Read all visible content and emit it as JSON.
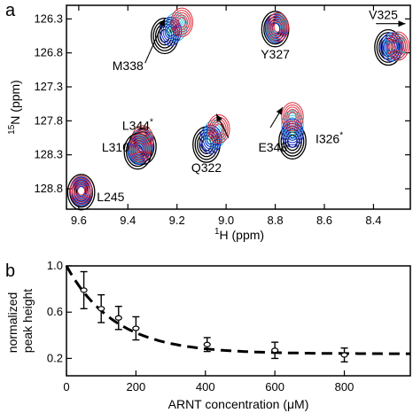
{
  "chart_data": [
    {
      "panel_label": "a",
      "type": "scatter",
      "title": "",
      "xlabel_parts": [
        "1",
        "H  (ppm)"
      ],
      "ylabel_parts": [
        "15",
        "N (ppm)"
      ],
      "xlim": [
        9.65,
        8.25
      ],
      "ylim": [
        129.1,
        126.1
      ],
      "x_reversed": true,
      "y_reversed": true,
      "xticks": [
        9.6,
        9.4,
        9.2,
        9.0,
        8.8,
        8.6,
        8.4
      ],
      "xtick_labels": [
        "9.6",
        "9.4",
        "9.2",
        "9.0",
        "8.8",
        "8.6",
        "8.4"
      ],
      "yticks": [
        126.3,
        126.8,
        127.3,
        127.8,
        128.3,
        128.8
      ],
      "ytick_labels": [
        "126.3",
        "126.8",
        "127.3",
        "127.8",
        "128.3",
        "128.8"
      ],
      "contour_colors": [
        "#000000",
        "#1a2fd0",
        "#2ac3d8",
        "#e02a3a"
      ],
      "peaks": [
        {
          "residue": "M338",
          "start": [
            9.25,
            126.55
          ],
          "end": [
            9.18,
            126.35
          ],
          "arrow_from": [
            9.33,
            126.95
          ]
        },
        {
          "residue": "Y327",
          "start": [
            8.8,
            126.45
          ],
          "end": [
            8.79,
            126.42
          ],
          "arrow_from": null
        },
        {
          "residue": "V325",
          "start": [
            8.34,
            126.72
          ],
          "end": [
            8.3,
            126.7
          ],
          "arrow_from": null
        },
        {
          "residue": "L344",
          "label_suffix": "*",
          "start": [
            9.34,
            128.18
          ],
          "end": [
            9.34,
            128.08
          ],
          "arrow_from": null
        },
        {
          "residue": "L310",
          "start": [
            9.36,
            128.25
          ],
          "end": [
            9.35,
            128.2
          ],
          "arrow_from": null
        },
        {
          "residue": "L245",
          "start": [
            9.59,
            128.85
          ],
          "end": [
            9.59,
            128.82
          ],
          "arrow_from": null
        },
        {
          "residue": "Q322",
          "start": [
            9.08,
            128.15
          ],
          "end": [
            9.03,
            127.92
          ],
          "arrow_from": [
            9.0,
            128.1
          ]
        },
        {
          "residue": "E348",
          "start": [
            8.73,
            128.1
          ],
          "end": [
            8.73,
            127.74
          ],
          "arrow_from": null
        },
        {
          "residue": "I326",
          "label_suffix": "*",
          "start": [
            8.73,
            128.1
          ],
          "end": [
            8.73,
            127.74
          ],
          "arrow_from": [
            8.82,
            127.9
          ]
        }
      ],
      "arrows": [
        {
          "from": [
            9.33,
            126.95
          ],
          "to": [
            9.25,
            126.3
          ]
        },
        {
          "from": [
            8.99,
            128.05
          ],
          "to": [
            9.04,
            127.7
          ]
        },
        {
          "from": [
            8.82,
            127.9
          ],
          "to": [
            8.77,
            127.6
          ]
        },
        {
          "from": [
            8.39,
            126.37
          ],
          "to": [
            8.27,
            126.37
          ]
        }
      ]
    },
    {
      "panel_label": "b",
      "type": "scatter",
      "title": "",
      "xlabel": "ARNT concentration (μM)",
      "ylabel_lines": [
        "normalized",
        "peak height"
      ],
      "xlim": [
        0,
        990
      ],
      "ylim": [
        0.05,
        1.0
      ],
      "xticks": [
        0,
        200,
        400,
        600,
        800
      ],
      "xtick_labels": [
        "0",
        "200",
        "400",
        "600",
        "800"
      ],
      "yticks": [
        0.2,
        0.6,
        1.0
      ],
      "ytick_labels": [
        "0.2",
        "0.6",
        "1.0"
      ],
      "x": [
        50,
        100,
        150,
        200,
        405,
        600,
        800
      ],
      "y": [
        0.79,
        0.63,
        0.55,
        0.46,
        0.32,
        0.27,
        0.23
      ],
      "error": [
        0.16,
        0.12,
        0.1,
        0.1,
        0.06,
        0.07,
        0.06
      ],
      "fit": {
        "style": "dashed",
        "y0": 1.0,
        "plateau": 0.24,
        "decay_constant": 140
      }
    }
  ]
}
